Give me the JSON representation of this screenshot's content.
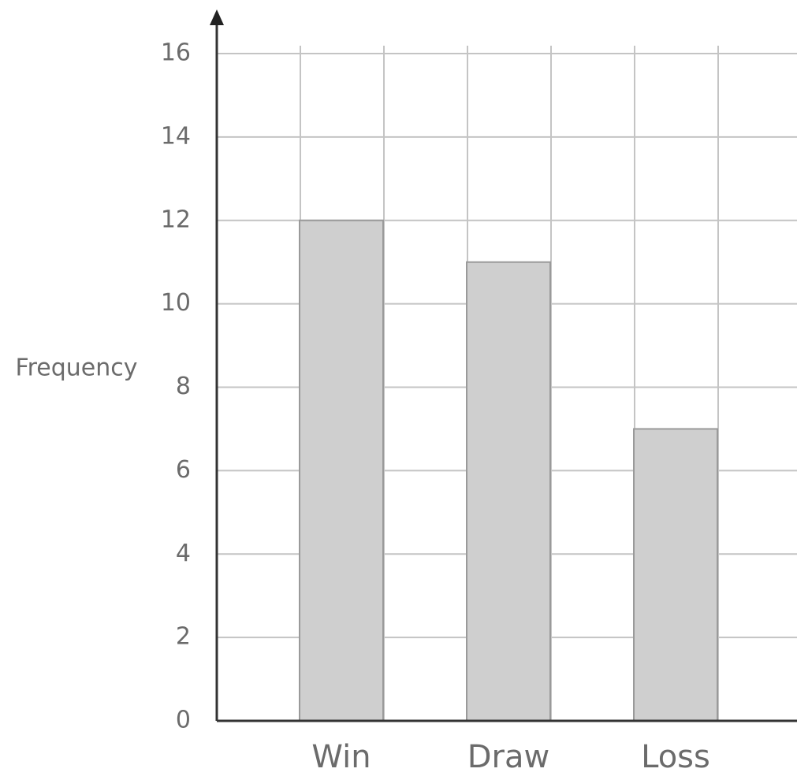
{
  "chart_data": {
    "type": "bar",
    "y_label": "Frequency",
    "categories": [
      "Win",
      "Draw",
      "Loss"
    ],
    "values": [
      12,
      11,
      7
    ],
    "color": "#cfcfcf",
    "ylim": [
      0,
      16
    ],
    "yticks": [
      0,
      2,
      4,
      6,
      8,
      10,
      12,
      14,
      16
    ],
    "grid": true
  }
}
